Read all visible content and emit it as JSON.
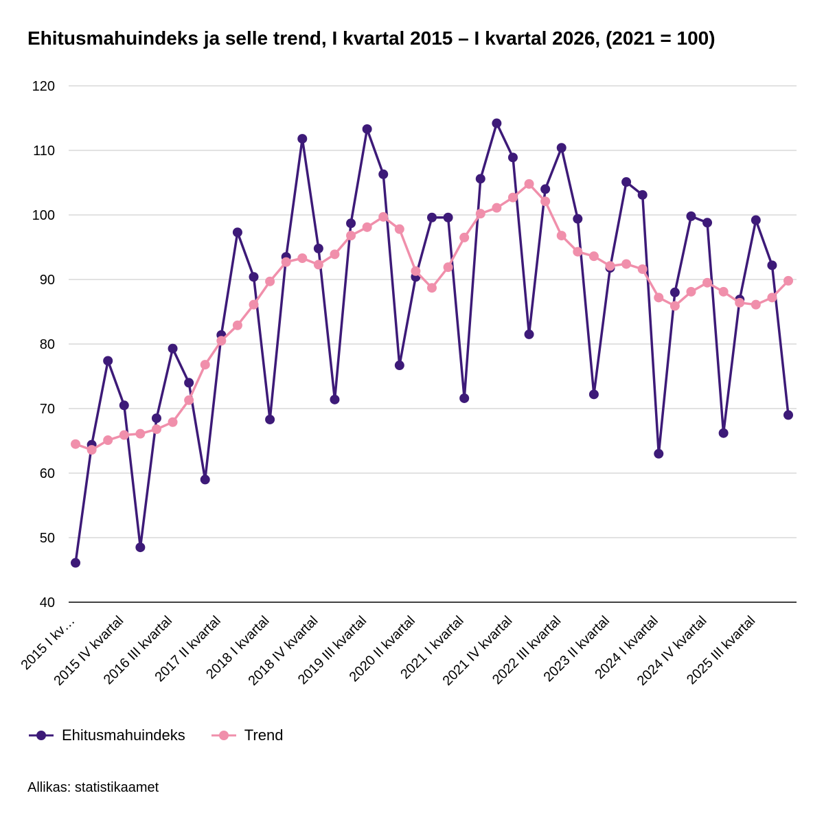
{
  "chart_data": {
    "type": "line",
    "title": "Ehitusmahuindeks ja selle trend, I kvartal 2015 – I kvartal 2026, (2021 = 100)",
    "xlabel": "",
    "ylabel": "",
    "ylim": [
      40,
      120
    ],
    "yticks": [
      40,
      50,
      60,
      70,
      80,
      90,
      100,
      110,
      120
    ],
    "grid": true,
    "legend_position": "bottom-left",
    "x": [
      "2015 I kvartal",
      "2015 II kvartal",
      "2015 III kvartal",
      "2015 IV kvartal",
      "2016 I kvartal",
      "2016 II kvartal",
      "2016 III kvartal",
      "2016 IV kvartal",
      "2017 I kvartal",
      "2017 II kvartal",
      "2017 III kvartal",
      "2017 IV kvartal",
      "2018 I kvartal",
      "2018 II kvartal",
      "2018 III kvartal",
      "2018 IV kvartal",
      "2019 I kvartal",
      "2019 II kvartal",
      "2019 III kvartal",
      "2019 IV kvartal",
      "2020 I kvartal",
      "2020 II kvartal",
      "2020 III kvartal",
      "2020 IV kvartal",
      "2021 I kvartal",
      "2021 II kvartal",
      "2021 III kvartal",
      "2021 IV kvartal",
      "2022 I kvartal",
      "2022 II kvartal",
      "2022 III kvartal",
      "2022 IV kvartal",
      "2023 I kvartal",
      "2023 II kvartal",
      "2023 III kvartal",
      "2023 IV kvartal",
      "2024 I kvartal",
      "2024 II kvartal",
      "2024 III kvartal",
      "2024 IV kvartal",
      "2025 I kvartal",
      "2025 II kvartal",
      "2025 III kvartal",
      "2025 IV kvartal",
      "2026 I kvartal"
    ],
    "x_tick_labels": [
      {
        "index": 0,
        "label": "2015 I kv…"
      },
      {
        "index": 3,
        "label": "2015 IV kvartal"
      },
      {
        "index": 6,
        "label": "2016 III kvartal"
      },
      {
        "index": 9,
        "label": "2017 II kvartal"
      },
      {
        "index": 12,
        "label": "2018 I kvartal"
      },
      {
        "index": 15,
        "label": "2018 IV kvartal"
      },
      {
        "index": 18,
        "label": "2019 III kvartal"
      },
      {
        "index": 21,
        "label": "2020 II kvartal"
      },
      {
        "index": 24,
        "label": "2021 I kvartal"
      },
      {
        "index": 27,
        "label": "2021 IV kvartal"
      },
      {
        "index": 30,
        "label": "2022 III kvartal"
      },
      {
        "index": 33,
        "label": "2023 II kvartal"
      },
      {
        "index": 36,
        "label": "2024 I kvartal"
      },
      {
        "index": 39,
        "label": "2024 IV kvartal"
      },
      {
        "index": 42,
        "label": "2025 III kvartal"
      }
    ],
    "series": [
      {
        "name": "Ehitusmahuindeks",
        "color": "#3d1a78",
        "values": [
          46.1,
          64.4,
          77.4,
          70.5,
          48.5,
          68.5,
          79.3,
          74.0,
          59.0,
          81.4,
          97.3,
          90.4,
          68.3,
          93.5,
          111.8,
          94.8,
          71.4,
          98.7,
          113.3,
          106.3,
          76.7,
          90.4,
          99.6,
          99.6,
          71.6,
          105.6,
          114.2,
          108.9,
          81.5,
          104.0,
          110.4,
          99.4,
          72.2,
          91.8,
          105.1,
          103.1,
          63.0,
          88.0,
          99.8,
          98.8,
          66.2,
          86.9,
          99.2,
          92.2,
          69.0
        ]
      },
      {
        "name": "Trend",
        "color": "#f08fab",
        "values": [
          64.5,
          63.6,
          65.1,
          65.9,
          66.1,
          66.8,
          67.9,
          71.3,
          76.8,
          80.5,
          82.9,
          86.1,
          89.7,
          92.7,
          93.3,
          92.3,
          93.9,
          96.8,
          98.1,
          99.7,
          97.8,
          91.3,
          88.7,
          91.9,
          96.5,
          100.2,
          101.1,
          102.7,
          104.8,
          102.1,
          96.8,
          94.3,
          93.6,
          92.1,
          92.4,
          91.6,
          87.2,
          85.9,
          88.1,
          89.5,
          88.1,
          86.4,
          86.1,
          87.2,
          89.8
        ]
      }
    ]
  },
  "source": "Allikas: statistikaamet"
}
